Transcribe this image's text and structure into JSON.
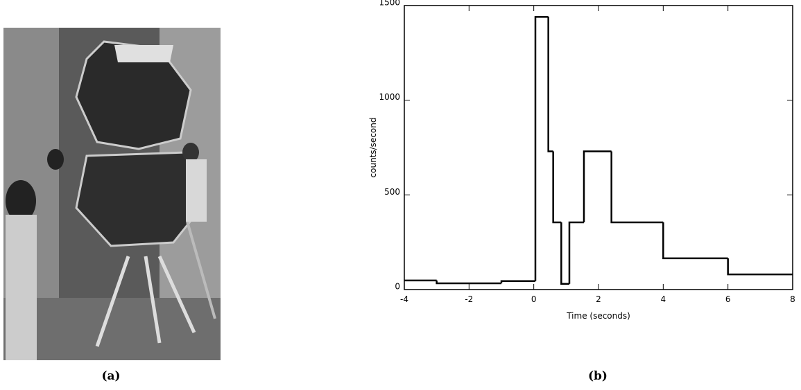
{
  "captions": [
    "(a)",
    "(b)"
  ],
  "chart_data": {
    "type": "histogram",
    "x_label": "Time (seconds)",
    "y_label": "counts/second",
    "bins": [
      -4,
      -3,
      -1,
      0.05,
      0.45,
      0.6,
      0.85,
      1.1,
      1.55,
      2.4,
      4,
      6,
      8
    ],
    "values": [
      48,
      33,
      45,
      1440,
      730,
      355,
      30,
      355,
      730,
      355,
      165,
      80
    ],
    "color": "#000000",
    "xlim": [
      -4,
      8
    ],
    "ylim": [
      0,
      1500
    ],
    "xticks": [
      -4,
      -2,
      0,
      2,
      4,
      6,
      8
    ],
    "yticks": [
      0,
      500,
      1000,
      1500
    ]
  }
}
